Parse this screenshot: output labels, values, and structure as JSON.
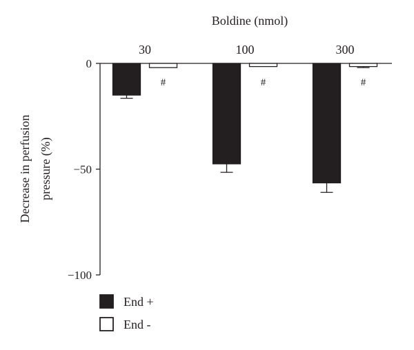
{
  "chart_data": {
    "type": "bar",
    "title": "Boldine (nmol)",
    "categories": [
      "30",
      "100",
      "300"
    ],
    "category_axis_position": "top",
    "ylabel": "Decrease in perfusion pressure (%)",
    "ylim": [
      -100,
      0
    ],
    "yticks": [
      0,
      -50,
      -100
    ],
    "yticks_text": [
      "0",
      "−50",
      "−100"
    ],
    "grid": false,
    "legend_position": "bottom-left",
    "series": [
      {
        "name": "End +",
        "color": "#231f20",
        "fill": "solid",
        "values": [
          -15,
          -47.5,
          -56.5
        ],
        "errors": [
          1.5,
          4,
          4.5
        ]
      },
      {
        "name": "End -",
        "color": "#231f20",
        "fill": "hollow",
        "values": [
          -2,
          -1.5,
          -1.5
        ],
        "errors": [
          0,
          0,
          0.5
        ]
      }
    ],
    "annotations": [
      "#",
      "#",
      "#"
    ]
  }
}
